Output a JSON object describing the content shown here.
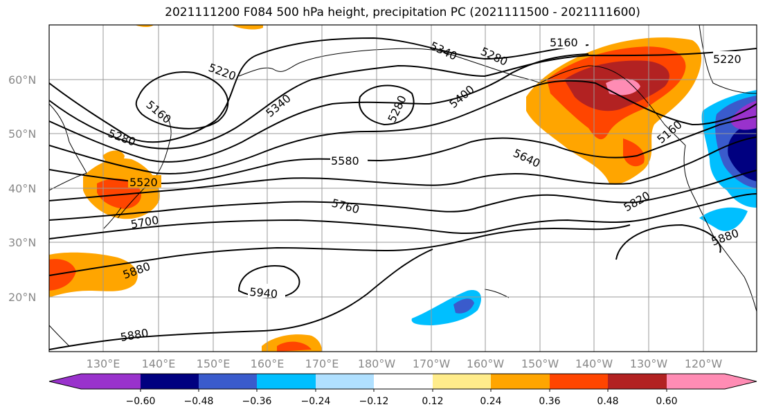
{
  "title": "2021111200 F084 500 hPa height, precipitation PC (2021111500 - 2021111600)",
  "map": {
    "lat_labels": [
      "60°N",
      "50°N",
      "40°N",
      "30°N",
      "20°N"
    ],
    "lon_labels": [
      "130°E",
      "140°E",
      "150°E",
      "160°E",
      "170°E",
      "180°W",
      "170°W",
      "160°W",
      "150°W",
      "140°W",
      "130°W",
      "120°W"
    ],
    "contour_labels": [
      "5160",
      "5220",
      "5280",
      "5340",
      "5400",
      "5520",
      "5580",
      "5640",
      "5700",
      "5760",
      "5820",
      "5880",
      "5940"
    ]
  },
  "colorbar": {
    "ticks": [
      "−0.60",
      "−0.48",
      "−0.36",
      "−0.24",
      "−0.12",
      "0.12",
      "0.24",
      "0.36",
      "0.48",
      "0.60"
    ],
    "colors": [
      "#9932cc",
      "#000080",
      "#3a5bcc",
      "#00bfff",
      "#b0e0ff",
      "#ffffff",
      "#ffec8b",
      "#ffa500",
      "#ff4500",
      "#b22222",
      "#ff8cb4"
    ]
  }
}
